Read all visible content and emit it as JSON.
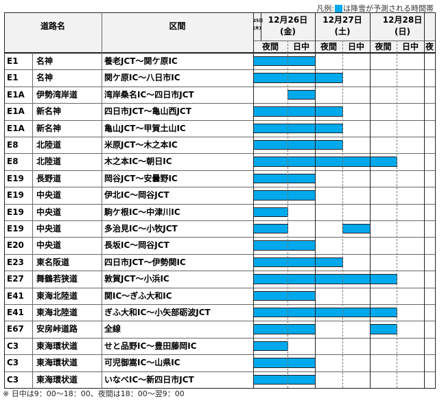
{
  "legend": {
    "prefix": "凡例:",
    "text": "は降雪が予測される時間帯",
    "color": "#00a8ec"
  },
  "header": {
    "road_label": "道路名",
    "section_label": "区間",
    "days": [
      {
        "date": "25日",
        "dow": "(木)"
      },
      {
        "date": "12月26日",
        "dow": "(金)"
      },
      {
        "date": "12月27日",
        "dow": "(土)"
      },
      {
        "date": "12月28日",
        "dow": "(日)"
      }
    ],
    "periods": [
      "夜間",
      "日中",
      "夜間",
      "日中",
      "夜間",
      "日中",
      "夜"
    ]
  },
  "rows": [
    {
      "code": "E1",
      "road": "名神",
      "section": "養老JCT～関ケ原IC",
      "snow": [
        [
          0,
          2
        ]
      ]
    },
    {
      "code": "E1",
      "road": "名神",
      "section": "関ケ原IC～八日市IC",
      "snow": [
        [
          0,
          3
        ]
      ]
    },
    {
      "code": "E1A",
      "road": "伊勢湾岸道",
      "section": "湾岸桑名IC～四日市JCT",
      "snow": [
        [
          1,
          2
        ]
      ]
    },
    {
      "code": "E1A",
      "road": "新名神",
      "section": "四日市JCT～亀山西JCT",
      "snow": [
        [
          0,
          3
        ]
      ]
    },
    {
      "code": "E1A",
      "road": "新名神",
      "section": "亀山JCT～甲賀土山IC",
      "snow": [
        [
          0,
          3
        ]
      ]
    },
    {
      "code": "E8",
      "road": "北陸道",
      "section": "米原JCT～木之本IC",
      "snow": [
        [
          0,
          3
        ]
      ]
    },
    {
      "code": "E8",
      "road": "北陸道",
      "section": "木之本IC～朝日IC",
      "snow": [
        [
          0,
          5
        ]
      ]
    },
    {
      "code": "E19",
      "road": "長野道",
      "section": "岡谷JCT～安曇野IC",
      "snow": [
        [
          0,
          2
        ]
      ]
    },
    {
      "code": "E19",
      "road": "中央道",
      "section": "伊北IC～岡谷JCT",
      "snow": [
        [
          0,
          2
        ]
      ]
    },
    {
      "code": "E19",
      "road": "中央道",
      "section": "駒ケ根IC～中津川IC",
      "snow": [
        [
          0,
          1
        ]
      ]
    },
    {
      "code": "E19",
      "road": "中央道",
      "section": "多治見IC～小牧JCT",
      "snow": [
        [
          0,
          1
        ],
        [
          3,
          4
        ]
      ]
    },
    {
      "code": "E20",
      "road": "中央道",
      "section": "長坂IC～岡谷JCT",
      "snow": [
        [
          0,
          2
        ]
      ]
    },
    {
      "code": "E23",
      "road": "東名阪道",
      "section": "四日市JCT～伊勢関IC",
      "snow": [
        [
          0,
          3
        ]
      ]
    },
    {
      "code": "E27",
      "road": "舞鶴若狭道",
      "section": "敦賀JCT～小浜IC",
      "snow": [
        [
          0,
          5
        ]
      ]
    },
    {
      "code": "E41",
      "road": "東海北陸道",
      "section": "関IC～ぎふ大和IC",
      "snow": [
        [
          0,
          2
        ]
      ]
    },
    {
      "code": "E41",
      "road": "東海北陸道",
      "section": "ぎふ大和IC～小矢部砺波JCT",
      "snow": [
        [
          0,
          5
        ]
      ]
    },
    {
      "code": "E67",
      "road": "安房峠道路",
      "section": "全線",
      "snow": [
        [
          0,
          2
        ],
        [
          4,
          5
        ]
      ]
    },
    {
      "code": "C3",
      "road": "東海環状道",
      "section": "せと品野IC～豊田藤岡IC",
      "snow": [
        [
          0,
          1
        ]
      ]
    },
    {
      "code": "C3",
      "road": "東海環状道",
      "section": "可児御嵩IC～山県IC",
      "snow": [
        [
          0,
          2
        ]
      ]
    },
    {
      "code": "C3",
      "road": "東海環状道",
      "section": "いなべIC～新四日市JCT",
      "snow": [
        [
          0,
          2
        ]
      ]
    }
  ],
  "note": "※ 日中は9：00～18：00、夜間は18：00～翌9：00"
}
